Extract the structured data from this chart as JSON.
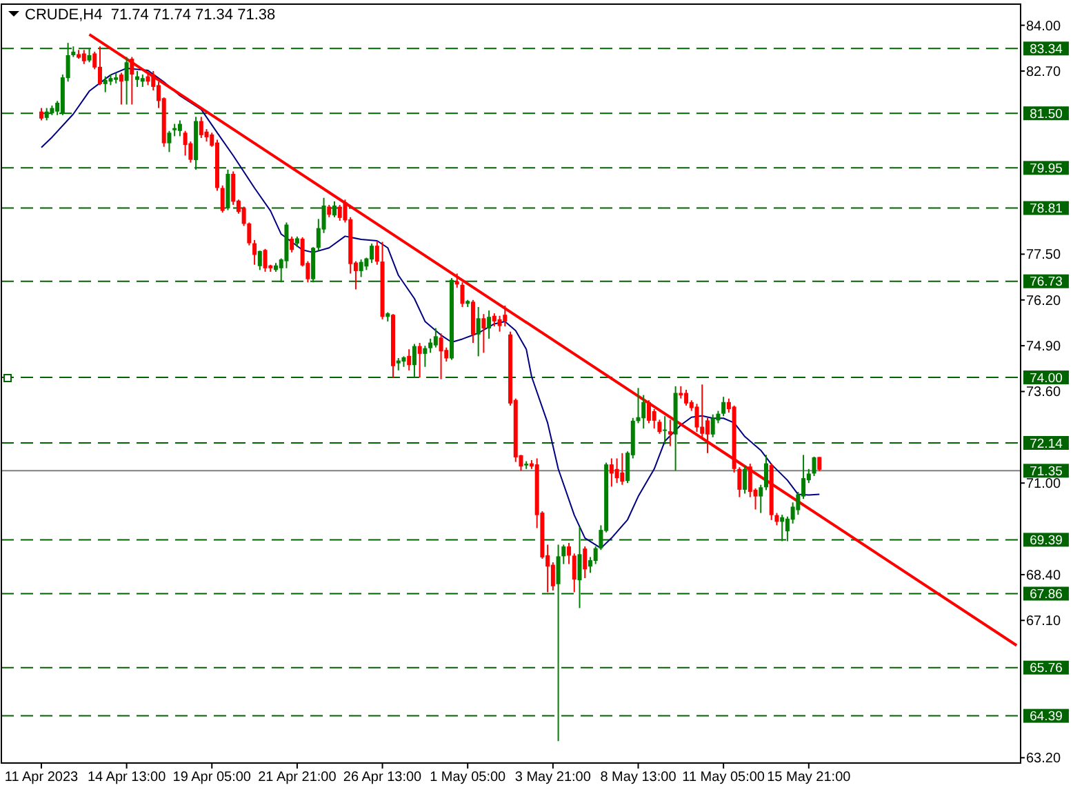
{
  "chart_data": {
    "type": "candlestick",
    "title": "CRUDE,H4  71.74 71.74 71.34 71.38",
    "categories": [
      "11 Apr 2023",
      null,
      null,
      null,
      null,
      null,
      null,
      null,
      null,
      null,
      null,
      null,
      null,
      null,
      null,
      null,
      "14 Apr 13:00",
      null,
      null,
      null,
      null,
      null,
      null,
      null,
      null,
      null,
      null,
      null,
      null,
      null,
      null,
      null,
      "19 Apr 05:00",
      null,
      null,
      null,
      null,
      null,
      null,
      null,
      null,
      null,
      null,
      null,
      null,
      null,
      null,
      null,
      "21 Apr 21:00",
      null,
      null,
      null,
      null,
      null,
      null,
      null,
      null,
      null,
      null,
      null,
      null,
      null,
      null,
      null,
      "26 Apr 13:00",
      null,
      null,
      null,
      null,
      null,
      null,
      null,
      null,
      null,
      null,
      null,
      null,
      null,
      null,
      null,
      "1 May 05:00",
      null,
      null,
      null,
      null,
      null,
      null,
      null,
      null,
      null,
      null,
      null,
      null,
      null,
      null,
      null,
      "3 May 21:00",
      null,
      null,
      null,
      null,
      null,
      null,
      null,
      null,
      null,
      null,
      null,
      null,
      null,
      null,
      null,
      "8 May 13:00",
      null,
      null,
      null,
      null,
      null,
      null,
      null,
      null,
      null,
      null,
      null,
      null,
      null,
      null,
      null,
      "11 May 05:00",
      null,
      null,
      null,
      null,
      null,
      null,
      null,
      null,
      null,
      null,
      null,
      null,
      null,
      null,
      null,
      "15 May 21:00",
      null,
      null,
      null,
      null,
      null,
      null,
      null,
      null,
      null,
      null,
      null,
      null,
      null,
      null,
      null,
      null,
      null,
      null,
      null,
      null,
      null,
      null,
      null,
      null,
      null,
      null,
      null,
      null,
      null,
      null,
      null,
      null,
      null,
      null,
      null,
      null,
      null,
      null,
      null
    ],
    "ohlc": [
      [
        81.55,
        81.65,
        81.3,
        81.35
      ],
      [
        81.37,
        81.65,
        81.3,
        81.55
      ],
      [
        81.5,
        81.72,
        81.45,
        81.65
      ],
      [
        81.55,
        81.85,
        81.45,
        81.8
      ],
      [
        81.5,
        82.6,
        81.45,
        82.52
      ],
      [
        82.5,
        83.5,
        82.4,
        83.15
      ],
      [
        83.15,
        83.4,
        83.1,
        83.25
      ],
      [
        83.18,
        83.3,
        83.05,
        83.08
      ],
      [
        83.2,
        83.3,
        82.9,
        82.98
      ],
      [
        83.0,
        83.35,
        82.95,
        83.15
      ],
      [
        83.2,
        83.25,
        82.75,
        82.8
      ],
      [
        82.82,
        83.4,
        82.3,
        82.33
      ],
      [
        82.33,
        82.55,
        82.1,
        82.45
      ],
      [
        82.4,
        82.6,
        82.3,
        82.5
      ],
      [
        82.45,
        82.65,
        82.35,
        82.52
      ],
      [
        82.6,
        82.65,
        81.75,
        82.4
      ],
      [
        82.42,
        83.1,
        81.75,
        82.95
      ],
      [
        83.05,
        83.1,
        81.75,
        82.6
      ],
      [
        82.45,
        82.7,
        82.25,
        82.55
      ],
      [
        82.4,
        82.6,
        82.25,
        82.5
      ],
      [
        82.55,
        82.65,
        82.3,
        82.4
      ],
      [
        82.6,
        82.7,
        82.15,
        82.25
      ],
      [
        82.3,
        82.4,
        81.65,
        81.85
      ],
      [
        81.93,
        81.95,
        80.55,
        80.65
      ],
      [
        80.65,
        81.0,
        80.4,
        80.95
      ],
      [
        81.02,
        81.2,
        80.85,
        81.08
      ],
      [
        81.0,
        81.3,
        80.85,
        81.2
      ],
      [
        80.95,
        81.0,
        80.3,
        80.6
      ],
      [
        80.65,
        80.7,
        80.1,
        80.18
      ],
      [
        80.17,
        81.4,
        79.9,
        81.28
      ],
      [
        81.28,
        81.4,
        80.8,
        80.88
      ],
      [
        80.98,
        81.05,
        80.7,
        80.82
      ],
      [
        80.9,
        80.95,
        80.55,
        80.58
      ],
      [
        80.67,
        80.75,
        79.3,
        79.38
      ],
      [
        79.38,
        79.45,
        78.68,
        78.73
      ],
      [
        78.8,
        79.9,
        78.75,
        79.78
      ],
      [
        79.78,
        79.85,
        78.9,
        78.99
      ],
      [
        79.02,
        79.05,
        78.65,
        78.7
      ],
      [
        78.8,
        78.85,
        78.3,
        78.36
      ],
      [
        78.37,
        78.4,
        77.75,
        77.81
      ],
      [
        77.81,
        77.9,
        77.2,
        77.48
      ],
      [
        77.16,
        77.6,
        77.05,
        77.59
      ],
      [
        77.62,
        77.65,
        77.0,
        77.1
      ],
      [
        77.18,
        77.2,
        77.0,
        77.1
      ],
      [
        77.05,
        77.25,
        77.0,
        77.18
      ],
      [
        77.1,
        77.38,
        76.7,
        77.35
      ],
      [
        77.3,
        78.4,
        77.1,
        78.34
      ],
      [
        77.94,
        78.0,
        77.55,
        77.62
      ],
      [
        77.8,
        78.0,
        77.7,
        77.95
      ],
      [
        77.94,
        77.98,
        77.15,
        77.18
      ],
      [
        77.25,
        77.3,
        76.7,
        76.79
      ],
      [
        76.79,
        77.7,
        76.7,
        77.68
      ],
      [
        77.68,
        78.5,
        77.6,
        78.24
      ],
      [
        78.2,
        79.1,
        78.1,
        78.88
      ],
      [
        78.85,
        78.9,
        78.55,
        78.62
      ],
      [
        78.6,
        79.0,
        78.55,
        78.88
      ],
      [
        78.85,
        78.9,
        78.45,
        78.53
      ],
      [
        78.98,
        79.05,
        78.4,
        78.46
      ],
      [
        78.49,
        78.55,
        76.95,
        77.22
      ],
      [
        77.26,
        77.3,
        76.5,
        77.02
      ],
      [
        77.02,
        77.35,
        76.85,
        77.28
      ],
      [
        77.15,
        77.4,
        77.05,
        77.38
      ],
      [
        77.35,
        77.8,
        77.25,
        77.74
      ],
      [
        77.74,
        77.88,
        77.2,
        77.29
      ],
      [
        77.29,
        77.85,
        75.65,
        75.72
      ],
      [
        75.72,
        75.85,
        75.59,
        75.82
      ],
      [
        75.78,
        75.8,
        73.99,
        74.32
      ],
      [
        74.4,
        74.55,
        74.2,
        74.48
      ],
      [
        74.45,
        74.6,
        74.3,
        74.57
      ],
      [
        74.61,
        74.8,
        74.2,
        74.35
      ],
      [
        74.35,
        74.95,
        74.0,
        74.89
      ],
      [
        74.89,
        74.98,
        74.0,
        74.67
      ],
      [
        74.67,
        74.9,
        74.3,
        74.83
      ],
      [
        74.83,
        75.1,
        74.7,
        74.99
      ],
      [
        74.91,
        75.4,
        74.85,
        75.17
      ],
      [
        75.13,
        75.25,
        73.95,
        74.74
      ],
      [
        74.78,
        74.85,
        74.45,
        74.54
      ],
      [
        74.54,
        76.82,
        74.5,
        76.77
      ],
      [
        76.73,
        76.95,
        76.55,
        76.64
      ],
      [
        76.63,
        76.7,
        76.0,
        76.09
      ],
      [
        76.09,
        76.2,
        76.0,
        76.17
      ],
      [
        76.15,
        76.2,
        74.98,
        75.22
      ],
      [
        75.22,
        76.0,
        74.6,
        75.68
      ],
      [
        75.68,
        75.8,
        74.7,
        75.39
      ],
      [
        75.39,
        75.9,
        75.1,
        75.72
      ],
      [
        75.75,
        75.82,
        75.45,
        75.59
      ],
      [
        75.65,
        75.75,
        75.3,
        75.46
      ],
      [
        75.78,
        76.04,
        75.45,
        75.59
      ],
      [
        75.22,
        75.3,
        73.2,
        73.26
      ],
      [
        73.36,
        73.4,
        71.6,
        71.73
      ],
      [
        71.79,
        71.8,
        71.35,
        71.47
      ],
      [
        71.5,
        71.62,
        71.4,
        71.55
      ],
      [
        71.56,
        71.65,
        71.4,
        71.47
      ],
      [
        71.53,
        71.7,
        69.72,
        70.09
      ],
      [
        70.16,
        70.2,
        68.85,
        68.89
      ],
      [
        68.95,
        69.25,
        67.9,
        68.63
      ],
      [
        68.68,
        68.75,
        67.95,
        68.07
      ],
      [
        68.13,
        69.25,
        63.67,
        68.92
      ],
      [
        68.92,
        69.25,
        68.7,
        69.2
      ],
      [
        69.2,
        69.3,
        68.7,
        68.94
      ],
      [
        68.94,
        69.0,
        67.9,
        68.26
      ],
      [
        68.24,
        69.75,
        67.45,
        68.98
      ],
      [
        69.14,
        69.2,
        68.3,
        68.55
      ],
      [
        68.63,
        68.9,
        68.45,
        68.81
      ],
      [
        68.79,
        69.2,
        68.7,
        69.15
      ],
      [
        69.15,
        69.8,
        69.1,
        69.67
      ],
      [
        69.64,
        71.58,
        69.6,
        71.53
      ],
      [
        71.53,
        71.7,
        70.9,
        71.27
      ],
      [
        71.4,
        71.7,
        71.0,
        71.14
      ],
      [
        71.3,
        71.85,
        70.95,
        71.04
      ],
      [
        71.06,
        71.9,
        71.0,
        71.86
      ],
      [
        71.79,
        72.85,
        71.7,
        72.77
      ],
      [
        72.76,
        73.7,
        72.7,
        72.87
      ],
      [
        72.84,
        73.5,
        72.55,
        73.3
      ],
      [
        73.3,
        73.35,
        72.7,
        72.77
      ],
      [
        73.04,
        73.1,
        72.55,
        72.77
      ],
      [
        72.74,
        72.8,
        72.4,
        72.45
      ],
      [
        72.5,
        72.9,
        72.1,
        72.52
      ],
      [
        72.47,
        72.8,
        72.05,
        72.38
      ],
      [
        72.38,
        73.75,
        71.35,
        73.56
      ],
      [
        73.56,
        73.75,
        73.4,
        73.49
      ],
      [
        73.56,
        73.65,
        73.2,
        73.26
      ],
      [
        73.3,
        73.35,
        73.05,
        73.13
      ],
      [
        73.17,
        73.25,
        72.45,
        72.58
      ],
      [
        72.6,
        73.8,
        72.3,
        72.4
      ],
      [
        72.78,
        72.85,
        71.85,
        72.38
      ],
      [
        72.38,
        72.95,
        72.3,
        72.84
      ],
      [
        72.78,
        73.05,
        72.7,
        72.97
      ],
      [
        72.97,
        73.45,
        72.9,
        73.3
      ],
      [
        73.3,
        73.4,
        73.0,
        73.1
      ],
      [
        73.17,
        73.2,
        71.3,
        71.4
      ],
      [
        71.4,
        71.45,
        70.6,
        70.81
      ],
      [
        70.81,
        71.5,
        70.7,
        71.4
      ],
      [
        71.47,
        71.55,
        70.6,
        70.75
      ],
      [
        70.81,
        70.85,
        70.25,
        70.62
      ],
      [
        70.62,
        70.95,
        70.15,
        70.88
      ],
      [
        70.88,
        71.8,
        70.8,
        71.56
      ],
      [
        71.51,
        71.55,
        69.95,
        70.09
      ],
      [
        70.09,
        70.15,
        69.8,
        69.9
      ],
      [
        69.9,
        70.1,
        69.35,
        70.03
      ],
      [
        69.63,
        70.05,
        69.35,
        69.99
      ],
      [
        69.96,
        70.45,
        69.85,
        70.33
      ],
      [
        70.23,
        70.75,
        70.1,
        70.68
      ],
      [
        70.62,
        71.8,
        70.55,
        71.14
      ],
      [
        71.08,
        71.4,
        71.0,
        71.27
      ],
      [
        71.27,
        71.75,
        71.2,
        71.73
      ],
      [
        71.74,
        71.74,
        71.34,
        71.38
      ],
      null,
      null,
      null,
      null,
      null,
      null,
      null,
      null,
      null,
      null,
      null,
      null,
      null,
      null,
      null,
      null,
      null,
      null,
      null,
      null,
      null,
      null,
      null,
      null,
      null,
      null,
      null,
      null,
      null,
      null,
      null,
      null,
      null,
      null,
      null,
      null,
      null
    ],
    "colors": [
      "#ff0000",
      "#008000",
      "#008000",
      "#008000",
      "#008000",
      "#008000",
      "#008000",
      "#ff0000",
      "#ff0000",
      "#008000",
      "#ff0000",
      "#ff0000",
      "#008000",
      "#008000",
      "#008000",
      "#ff0000",
      "#008000",
      "#ff0000",
      "#008000",
      "#008000",
      "#ff0000",
      "#ff0000",
      "#ff0000",
      "#ff0000",
      "#008000",
      "#008000",
      "#008000",
      "#ff0000",
      "#ff0000",
      "#008000",
      "#ff0000",
      "#ff0000",
      "#ff0000",
      "#ff0000",
      "#ff0000",
      "#008000",
      "#ff0000",
      "#ff0000",
      "#ff0000",
      "#ff0000",
      "#ff0000",
      "#008000",
      "#ff0000",
      "#ff0000",
      "#008000",
      "#008000",
      "#008000",
      "#ff0000",
      "#008000",
      "#ff0000",
      "#ff0000",
      "#008000",
      "#008000",
      "#008000",
      "#ff0000",
      "#008000",
      "#ff0000",
      "#ff0000",
      "#ff0000",
      "#ff0000",
      "#008000",
      "#008000",
      "#008000",
      "#ff0000",
      "#ff0000",
      "#008000",
      "#ff0000",
      "#008000",
      "#008000",
      "#ff0000",
      "#008000",
      "#ff0000",
      "#008000",
      "#008000",
      "#008000",
      "#ff0000",
      "#ff0000",
      "#008000",
      "#ff0000",
      "#ff0000",
      "#008000",
      "#ff0000",
      "#008000",
      "#ff0000",
      "#008000",
      "#ff0000",
      "#ff0000",
      "#ff0000",
      "#ff0000",
      "#ff0000",
      "#ff0000",
      "#008000",
      "#ff0000",
      "#ff0000",
      "#ff0000",
      "#ff0000",
      "#ff0000",
      "#008000",
      "#008000",
      "#ff0000",
      "#ff0000",
      "#008000",
      "#ff0000",
      "#008000",
      "#008000",
      "#008000",
      "#008000",
      "#ff0000",
      "#ff0000",
      "#ff0000",
      "#008000",
      "#008000",
      "#008000",
      "#008000",
      "#ff0000",
      "#ff0000",
      "#ff0000",
      "#008000",
      "#ff0000",
      "#008000",
      "#ff0000",
      "#ff0000",
      "#ff0000",
      "#ff0000",
      "#ff0000",
      "#ff0000",
      "#008000",
      "#008000",
      "#008000",
      "#ff0000",
      "#ff0000",
      "#ff0000",
      "#008000",
      "#ff0000",
      "#ff0000",
      "#008000",
      "#008000",
      "#ff0000",
      "#ff0000",
      "#008000",
      "#008000",
      "#008000",
      "#008000",
      "#008000",
      "#008000",
      "#008000",
      "#ff0000",
      null,
      null,
      null,
      null,
      null,
      null,
      null,
      null,
      null,
      null,
      null,
      null,
      null,
      null,
      null,
      null,
      null,
      null,
      null,
      null,
      null,
      null,
      null,
      null,
      null,
      null,
      null,
      null,
      null,
      null,
      null,
      null,
      null,
      null,
      null,
      null,
      null
    ],
    "ylim": [
      63.05,
      84.6
    ],
    "yticks": [
      {
        "value": 84,
        "label": "84.00"
      },
      {
        "value": 82.7,
        "label": "82.70"
      },
      {
        "value": 77.5,
        "label": "77.50"
      },
      {
        "value": 76.2,
        "label": "76.20"
      },
      {
        "value": 74.9,
        "label": "74.90"
      },
      {
        "value": 73.6,
        "label": "73.60"
      },
      {
        "value": 71,
        "label": "71.00"
      },
      {
        "value": 68.4,
        "label": "68.40"
      },
      {
        "value": 67.1,
        "label": "67.10"
      },
      {
        "value": 63.2,
        "label": "63.20"
      }
    ],
    "series": [
      {
        "type": "line",
        "color": "#000080",
        "values": [
          80.53,
          null,
          80.82,
          null,
          null,
          null,
          81.48,
          null,
          null,
          82.13,
          null,
          null,
          null,
          82.59,
          null,
          null,
          82.78,
          null,
          null,
          null,
          82.72,
          null,
          null,
          82.39,
          null,
          null,
          82.0,
          null,
          null,
          null,
          81.61,
          null,
          null,
          80.95,
          null,
          null,
          80.3,
          null,
          null,
          null,
          79.38,
          null,
          null,
          78.73,
          null,
          78.07,
          null,
          null,
          null,
          77.62,
          null,
          77.55,
          null,
          null,
          77.68,
          null,
          null,
          78.01,
          null,
          null,
          77.92,
          null,
          null,
          77.88,
          null,
          77.68,
          null,
          76.9,
          null,
          null,
          76.24,
          null,
          75.59,
          null,
          null,
          75.2,
          null,
          75.0,
          null,
          75.09,
          null,
          null,
          75.26,
          null,
          null,
          75.52,
          null,
          75.59,
          null,
          75.33,
          null,
          74.8,
          74.02,
          null,
          null,
          72.71,
          null,
          71.4,
          null,
          null,
          70.09,
          null,
          69.44,
          null,
          null,
          69.15,
          null,
          69.44,
          null,
          null,
          69.96,
          null,
          70.62,
          null,
          null,
          71.4,
          null,
          72.19,
          null,
          null,
          72.65,
          null,
          72.87,
          null,
          72.91,
          null,
          72.84,
          null,
          72.84,
          null,
          72.71,
          null,
          72.32,
          null,
          null,
          71.93,
          null,
          71.53,
          null,
          null,
          71.08,
          null,
          70.68,
          null,
          70.66,
          null,
          70.68,
          null,
          null,
          null,
          null,
          null,
          null,
          null,
          null,
          null,
          null,
          null,
          null,
          null,
          null,
          null,
          null,
          null,
          null,
          null,
          null,
          null,
          null,
          null,
          null,
          null,
          null,
          null,
          null,
          null,
          null,
          null,
          null,
          null,
          null,
          null,
          null,
          null
        ]
      },
      {
        "type": "line",
        "color": "#ff0000",
        "values": [
          null,
          null,
          null,
          null,
          null,
          null,
          null,
          null,
          null,
          83.74,
          null,
          null,
          null,
          null,
          null,
          null,
          null,
          null,
          null,
          null,
          null,
          null,
          null,
          null,
          null,
          null,
          null,
          null,
          null,
          null,
          null,
          null,
          null,
          null,
          null,
          null,
          null,
          null,
          null,
          null,
          null,
          null,
          null,
          null,
          null,
          null,
          null,
          null,
          null,
          null,
          null,
          null,
          null,
          null,
          null,
          null,
          null,
          null,
          null,
          null,
          null,
          null,
          null,
          null,
          null,
          null,
          null,
          null,
          null,
          null,
          null,
          null,
          null,
          null,
          null,
          null,
          null,
          null,
          null,
          null,
          null,
          null,
          null,
          null,
          null,
          null,
          null,
          null,
          null,
          null,
          null,
          null,
          null,
          null,
          null,
          null,
          null,
          null,
          null,
          null,
          null,
          null,
          null,
          null,
          null,
          null,
          null,
          null,
          null,
          null,
          null,
          null,
          null,
          null,
          null,
          null,
          null,
          null,
          null,
          null,
          null,
          null,
          null,
          null,
          null,
          null,
          null,
          null,
          null,
          null,
          null,
          null,
          null,
          null,
          null,
          null,
          null,
          null,
          null,
          null,
          null,
          null,
          null,
          null,
          null,
          null,
          null,
          null,
          null,
          null,
          null,
          null,
          null,
          null,
          null,
          null,
          null,
          null,
          null,
          null,
          null,
          null,
          null,
          null,
          null,
          null,
          null,
          null,
          null,
          null,
          null,
          null,
          null,
          null,
          null,
          null,
          null,
          null,
          null,
          null,
          null,
          null,
          null,
          66.39
        ]
      }
    ],
    "ref_lines": [
      {
        "axis": "y",
        "value": 83.34,
        "label": "83.34",
        "color": "#006400",
        "line_style": "dashed"
      },
      {
        "axis": "y",
        "value": 81.5,
        "label": "81.50",
        "color": "#006400",
        "line_style": "dashed"
      },
      {
        "axis": "y",
        "value": 79.95,
        "label": "79.95",
        "color": "#006400",
        "line_style": "dashed"
      },
      {
        "axis": "y",
        "value": 78.81,
        "label": "78.81",
        "color": "#006400",
        "line_style": "dashed"
      },
      {
        "axis": "y",
        "value": 76.73,
        "label": "76.73",
        "color": "#006400",
        "line_style": "dashed"
      },
      {
        "axis": "y",
        "value": 74.0,
        "label": "74.00",
        "color": "#006400",
        "line_style": "dashed"
      },
      {
        "axis": "y",
        "value": 72.14,
        "label": "72.14",
        "color": "#006400",
        "line_style": "dashed"
      },
      {
        "axis": "y",
        "value": 71.35,
        "label": "71.35",
        "color": "#808080",
        "line_style": "solid"
      },
      {
        "axis": "y",
        "value": 69.39,
        "label": "69.39",
        "color": "#006400",
        "line_style": "dashed"
      },
      {
        "axis": "y",
        "value": 67.86,
        "label": "67.86",
        "color": "#006400",
        "line_style": "dashed"
      },
      {
        "axis": "y",
        "value": 65.76,
        "label": "65.76",
        "color": "#006400",
        "line_style": "dashed"
      },
      {
        "axis": "y",
        "value": 64.39,
        "label": "64.39",
        "color": "#006400",
        "line_style": "dashed"
      }
    ]
  }
}
